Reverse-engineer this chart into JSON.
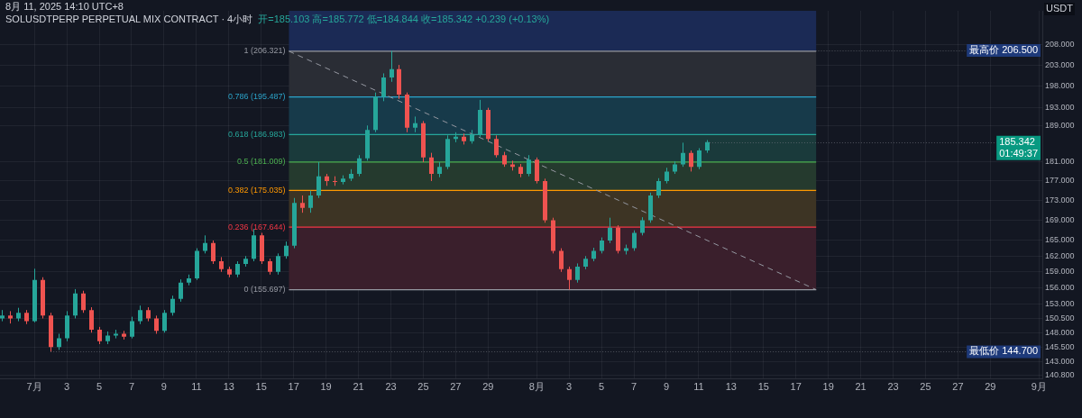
{
  "chart_data": {
    "type": "candlestick",
    "title": "SOLUSDTPERP PERPETUAL MIX CONTRACT · 4小时",
    "subtitle": "开=185.103 高=185.772 低=184.844 收=185.342 +0.239 (+0.13%)",
    "ylabel": "USDT",
    "annotations": [
      "8月 11, 2025 14:10 UTC+8",
      {
        "text": "最高价 206.500",
        "x": "2025-07-23T00:00",
        "y": 206.5
      },
      {
        "text": "最低价 144.700",
        "x": "2025-07-02T00:00",
        "y": 144.7
      },
      {
        "text": "185.342\n01:49:37",
        "x": "2025-08-11T12:00",
        "y": 185.342
      }
    ],
    "x": [
      "2025-06-29T00:00",
      "2025-06-29T12:00",
      "2025-06-30T00:00",
      "2025-06-30T12:00",
      "2025-07-01T00:00",
      "2025-07-01T12:00",
      "2025-07-02T00:00",
      "2025-07-02T12:00",
      "2025-07-03T00:00",
      "2025-07-03T12:00",
      "2025-07-04T00:00",
      "2025-07-04T12:00",
      "2025-07-05T00:00",
      "2025-07-05T12:00",
      "2025-07-06T00:00",
      "2025-07-06T12:00",
      "2025-07-07T00:00",
      "2025-07-07T12:00",
      "2025-07-08T00:00",
      "2025-07-08T12:00",
      "2025-07-09T00:00",
      "2025-07-09T12:00",
      "2025-07-10T00:00",
      "2025-07-10T12:00",
      "2025-07-11T00:00",
      "2025-07-11T12:00",
      "2025-07-12T00:00",
      "2025-07-12T12:00",
      "2025-07-13T00:00",
      "2025-07-13T12:00",
      "2025-07-14T00:00",
      "2025-07-14T12:00",
      "2025-07-15T00:00",
      "2025-07-15T12:00",
      "2025-07-16T00:00",
      "2025-07-16T12:00",
      "2025-07-17T00:00",
      "2025-07-17T12:00",
      "2025-07-18T00:00",
      "2025-07-18T12:00",
      "2025-07-19T00:00",
      "2025-07-19T12:00",
      "2025-07-20T00:00",
      "2025-07-20T12:00",
      "2025-07-21T00:00",
      "2025-07-21T12:00",
      "2025-07-22T00:00",
      "2025-07-22T12:00",
      "2025-07-23T00:00",
      "2025-07-23T12:00",
      "2025-07-24T00:00",
      "2025-07-24T12:00",
      "2025-07-25T00:00",
      "2025-07-25T12:00",
      "2025-07-26T00:00",
      "2025-07-26T12:00",
      "2025-07-27T00:00",
      "2025-07-27T12:00",
      "2025-07-28T00:00",
      "2025-07-28T12:00",
      "2025-07-29T00:00",
      "2025-07-29T12:00",
      "2025-07-30T00:00",
      "2025-07-30T12:00",
      "2025-07-31T00:00",
      "2025-07-31T12:00",
      "2025-08-01T00:00",
      "2025-08-01T12:00",
      "2025-08-02T00:00",
      "2025-08-02T12:00",
      "2025-08-03T00:00",
      "2025-08-03T12:00",
      "2025-08-04T00:00",
      "2025-08-04T12:00",
      "2025-08-05T00:00",
      "2025-08-05T12:00",
      "2025-08-06T00:00",
      "2025-08-06T12:00",
      "2025-08-07T00:00",
      "2025-08-07T12:00",
      "2025-08-08T00:00",
      "2025-08-08T12:00",
      "2025-08-09T00:00",
      "2025-08-09T12:00",
      "2025-08-10T00:00",
      "2025-08-10T12:00",
      "2025-08-11T00:00",
      "2025-08-11T12:00"
    ],
    "ohlc": [
      [
        150.5,
        152,
        150,
        151
      ],
      [
        151,
        151.8,
        149.6,
        150.5
      ],
      [
        150.5,
        152.4,
        150,
        151.5
      ],
      [
        151.5,
        152,
        149.5,
        150
      ],
      [
        150,
        159.6,
        149.8,
        157.5
      ],
      [
        157.5,
        158,
        150.5,
        151
      ],
      [
        151,
        151.5,
        144.7,
        145.5
      ],
      [
        145.5,
        147.8,
        145,
        147
      ],
      [
        147,
        151.8,
        146.5,
        151
      ],
      [
        151,
        155.8,
        150.5,
        155
      ],
      [
        155,
        155.5,
        151.5,
        152
      ],
      [
        152,
        152.5,
        148,
        148.5
      ],
      [
        148.5,
        149,
        146,
        146.5
      ],
      [
        146.5,
        148.2,
        146,
        147.5
      ],
      [
        147.5,
        148.5,
        147,
        147.8
      ],
      [
        147.8,
        148.3,
        146.8,
        147.3
      ],
      [
        147.3,
        150.8,
        147,
        150
      ],
      [
        150,
        152.8,
        149.5,
        152
      ],
      [
        152,
        152.5,
        150,
        150.5
      ],
      [
        150.5,
        151,
        147.8,
        148.3
      ],
      [
        148.3,
        152,
        148,
        151.5
      ],
      [
        151.5,
        154.6,
        151,
        154
      ],
      [
        154,
        157.6,
        153.5,
        157
      ],
      [
        157,
        158.5,
        156.5,
        157.8
      ],
      [
        157.8,
        163.5,
        157.5,
        163
      ],
      [
        163,
        166,
        162.5,
        164.5
      ],
      [
        164.5,
        165,
        160.5,
        161
      ],
      [
        161,
        161.8,
        159,
        159.5
      ],
      [
        159.5,
        160,
        158,
        158.5
      ],
      [
        158.5,
        161,
        158,
        160.5
      ],
      [
        160.5,
        162,
        160,
        161.5
      ],
      [
        161.5,
        167.3,
        161,
        166
      ],
      [
        166,
        166.5,
        160.5,
        161
      ],
      [
        161,
        161.5,
        158.5,
        159
      ],
      [
        159,
        162.5,
        158.5,
        162
      ],
      [
        162,
        164.8,
        161.5,
        164
      ],
      [
        164,
        173.5,
        163.5,
        172.5
      ],
      [
        172.5,
        174,
        170.5,
        171.5
      ],
      [
        171.5,
        175,
        170.5,
        174
      ],
      [
        174,
        181,
        173.5,
        178
      ],
      [
        178,
        178.5,
        176,
        177
      ],
      [
        177,
        178,
        176,
        176.8
      ],
      [
        176.8,
        178.2,
        176.3,
        177.5
      ],
      [
        177.5,
        179.5,
        177,
        178.5
      ],
      [
        178.5,
        182.5,
        178,
        181.8
      ],
      [
        181.8,
        189,
        181.3,
        188
      ],
      [
        188,
        196.5,
        187.5,
        195.5
      ],
      [
        195.5,
        201,
        194.5,
        200
      ],
      [
        200,
        206.5,
        199,
        202
      ],
      [
        202,
        203,
        195,
        196
      ],
      [
        196,
        196.5,
        187.5,
        188.5
      ],
      [
        188.5,
        191,
        187.5,
        189.5
      ],
      [
        189.5,
        190,
        181,
        182
      ],
      [
        182,
        183,
        177,
        178.5
      ],
      [
        178.5,
        181,
        177.8,
        180
      ],
      [
        180,
        186.8,
        179.5,
        186
      ],
      [
        186,
        187.5,
        185.3,
        186.5
      ],
      [
        186.5,
        187.2,
        184.8,
        185.5
      ],
      [
        185.5,
        188,
        185,
        187
      ],
      [
        187,
        194.8,
        186.5,
        192.5
      ],
      [
        192.5,
        193,
        185.5,
        186
      ],
      [
        186,
        186.8,
        182,
        182.5
      ],
      [
        182.5,
        183.2,
        180,
        180.5
      ],
      [
        180.5,
        181.3,
        179.2,
        180
      ],
      [
        180,
        180.6,
        177.8,
        178.5
      ],
      [
        178.5,
        182.5,
        178,
        181.5
      ],
      [
        181.5,
        182,
        176.5,
        177
      ],
      [
        177,
        177.5,
        168.5,
        169
      ],
      [
        169,
        169.5,
        162.5,
        163
      ],
      [
        163,
        163.5,
        159,
        159.5
      ],
      [
        159.5,
        160,
        155.7,
        157.5
      ],
      [
        157.5,
        160.6,
        157,
        160
      ],
      [
        160,
        162,
        159.5,
        161.5
      ],
      [
        161.5,
        163.6,
        161,
        163
      ],
      [
        163,
        165.6,
        162.5,
        165
      ],
      [
        165,
        169.5,
        164.5,
        167.5
      ],
      [
        167.5,
        168,
        162.5,
        163
      ],
      [
        163,
        164.2,
        162.3,
        163.5
      ],
      [
        163.5,
        167,
        163,
        166.5
      ],
      [
        166.5,
        169.6,
        166,
        169
      ],
      [
        169,
        174.6,
        168.5,
        174
      ],
      [
        174,
        177.6,
        173.5,
        177
      ],
      [
        177,
        179.8,
        176.5,
        179
      ],
      [
        179,
        181.2,
        178.5,
        180.5
      ],
      [
        180.5,
        185.2,
        180,
        183
      ],
      [
        183,
        183.5,
        179,
        180
      ],
      [
        180,
        184,
        179.5,
        183.5
      ],
      [
        183.5,
        185.772,
        183,
        185.342
      ]
    ],
    "series": [
      {
        "type": "line",
        "x": [
          "2025-07-16T17:00",
          "2025-08-18T06:00"
        ],
        "values": [
          206.321,
          155.697
        ],
        "color": "#9598a1",
        "line_style": "dashed"
      }
    ],
    "xlim": [
      "2025-06-28T21:00",
      "2025-09-01T05:00"
    ],
    "xticks": [
      {
        "value": "2025-07-01",
        "label": "7月"
      },
      {
        "value": "2025-07-03",
        "label": "3"
      },
      {
        "value": "2025-07-05",
        "label": "5"
      },
      {
        "value": "2025-07-07",
        "label": "7"
      },
      {
        "value": "2025-07-09",
        "label": "9"
      },
      {
        "value": "2025-07-11",
        "label": "11"
      },
      {
        "value": "2025-07-13",
        "label": "13"
      },
      {
        "value": "2025-07-15",
        "label": "15"
      },
      {
        "value": "2025-07-17",
        "label": "17"
      },
      {
        "value": "2025-07-19",
        "label": "19"
      },
      {
        "value": "2025-07-21",
        "label": "21"
      },
      {
        "value": "2025-07-23",
        "label": "23"
      },
      {
        "value": "2025-07-25",
        "label": "25"
      },
      {
        "value": "2025-07-27",
        "label": "27"
      },
      {
        "value": "2025-07-29",
        "label": "29"
      },
      {
        "value": "2025-08-01",
        "label": "8月"
      },
      {
        "value": "2025-08-03",
        "label": "3"
      },
      {
        "value": "2025-08-05",
        "label": "5"
      },
      {
        "value": "2025-08-07",
        "label": "7"
      },
      {
        "value": "2025-08-09",
        "label": "9"
      },
      {
        "value": "2025-08-11",
        "label": "11"
      },
      {
        "value": "2025-08-13",
        "label": "13"
      },
      {
        "value": "2025-08-15",
        "label": "15"
      },
      {
        "value": "2025-08-17",
        "label": "17"
      },
      {
        "value": "2025-08-19",
        "label": "19"
      },
      {
        "value": "2025-08-21",
        "label": "21"
      },
      {
        "value": "2025-08-23",
        "label": "23"
      },
      {
        "value": "2025-08-25",
        "label": "25"
      },
      {
        "value": "2025-08-27",
        "label": "27"
      },
      {
        "value": "2025-08-29",
        "label": "29"
      },
      {
        "value": "2025-09-01",
        "label": "9月"
      }
    ],
    "ylim": [
      140.1,
      216.4
    ],
    "yticks": [
      {
        "value": 208,
        "label": "208.000"
      },
      {
        "value": 203,
        "label": "203.000"
      },
      {
        "value": 198,
        "label": "198.000"
      },
      {
        "value": 193,
        "label": "193.000"
      },
      {
        "value": 189,
        "label": "189.000"
      },
      {
        "value": 181,
        "label": "181.000"
      },
      {
        "value": 177,
        "label": "177.000"
      },
      {
        "value": 173,
        "label": "173.000"
      },
      {
        "value": 169,
        "label": "169.000"
      },
      {
        "value": 165,
        "label": "165.000"
      },
      {
        "value": 162,
        "label": "162.000"
      },
      {
        "value": 159,
        "label": "159.000"
      },
      {
        "value": 156,
        "label": "156.000"
      },
      {
        "value": 153,
        "label": "153.000"
      },
      {
        "value": 150.5,
        "label": "150.500"
      },
      {
        "value": 148,
        "label": "148.000"
      },
      {
        "value": 145.5,
        "label": "145.500"
      },
      {
        "value": 143,
        "label": "143.000"
      },
      {
        "value": 140.8,
        "label": "140.800"
      }
    ],
    "log": "y",
    "grid": true,
    "bands": [
      {
        "axis": "y",
        "from": 206.321,
        "to": 216.4,
        "color": "#1b2a55"
      },
      {
        "axis": "y",
        "from": 195.487,
        "to": 206.321,
        "color": "#2a2d35"
      },
      {
        "axis": "y",
        "from": 186.983,
        "to": 195.487,
        "color": "#173a4a"
      },
      {
        "axis": "y",
        "from": 181.009,
        "to": 186.983,
        "color": "#1a3a3b"
      },
      {
        "axis": "y",
        "from": 175.035,
        "to": 181.009,
        "color": "#253a2e"
      },
      {
        "axis": "y",
        "from": 167.644,
        "to": 175.035,
        "color": "#3d3424"
      },
      {
        "axis": "y",
        "from": 155.697,
        "to": 167.644,
        "color": "#3a1f2c"
      }
    ],
    "ref_lines": [
      {
        "axis": "y",
        "value": 206.321,
        "label": "1 (206.321)",
        "color": "#9598a1"
      },
      {
        "axis": "y",
        "value": 195.487,
        "label": "0.786 (195.487)",
        "color": "#2ba3c9"
      },
      {
        "axis": "y",
        "value": 186.983,
        "label": "0.618 (186.983)",
        "color": "#26a69a"
      },
      {
        "axis": "y",
        "value": 181.009,
        "label": "0.5 (181.009)",
        "color": "#4caf50"
      },
      {
        "axis": "y",
        "value": 175.035,
        "label": "0.382 (175.035)",
        "color": "#ff9800"
      },
      {
        "axis": "y",
        "value": 167.644,
        "label": "0.236 (167.644)",
        "color": "#f23645"
      },
      {
        "axis": "y",
        "value": 155.697,
        "label": "0 (155.697)",
        "color": "#9598a1"
      }
    ]
  }
}
